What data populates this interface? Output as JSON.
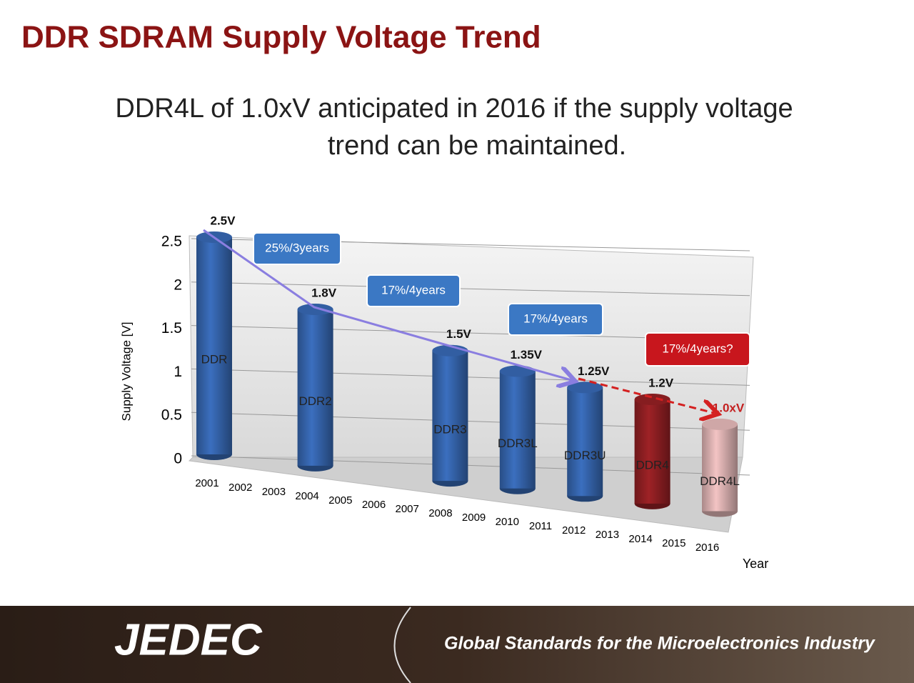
{
  "slide": {
    "title": "DDR SDRAM Supply Voltage Trend",
    "subtitle": [
      "DDR4L of 1.0xV anticipated in 2016 if the supply voltage",
      "trend can be maintained."
    ]
  },
  "chart_data": {
    "type": "bar3d",
    "y_label": "Supply Voltage  [V]",
    "x_label": "Year",
    "categories": [
      "2001",
      "2002",
      "2003",
      "2004",
      "2005",
      "2006",
      "2007",
      "2008",
      "2009",
      "2010",
      "2011",
      "2012",
      "2013",
      "2014",
      "2015",
      "2016"
    ],
    "values": [
      2.5,
      null,
      null,
      1.8,
      null,
      null,
      null,
      1.5,
      null,
      1.35,
      null,
      1.25,
      null,
      1.2,
      null,
      1.0
    ],
    "value_labels": [
      "2.5V",
      null,
      null,
      "1.8V",
      null,
      null,
      null,
      "1.5V",
      null,
      "1.35V",
      null,
      "1.25V",
      null,
      "1.2V",
      null,
      "1.0xV"
    ],
    "bar_labels": [
      "DDR",
      null,
      null,
      "DDR2",
      null,
      null,
      null,
      "DDR3",
      null,
      "DDR3L",
      null,
      "DDR3U",
      null,
      "DDR4",
      null,
      "DDR4L"
    ],
    "colors": [
      "#3b6fbf",
      null,
      null,
      "#3b6fbf",
      null,
      null,
      null,
      "#3b6fbf",
      null,
      "#3b6fbf",
      null,
      "#3b6fbf",
      null,
      "#9e2226",
      null,
      "#f3c4c4"
    ],
    "ylim": [
      0,
      2.5
    ],
    "yticks": [
      0,
      0.5,
      1,
      1.5,
      2,
      2.5
    ],
    "grid": true,
    "annotations": [
      "25%/3years",
      "17%/4years",
      "17%/4years",
      "17%/4years?"
    ]
  },
  "footer": {
    "logo": "JEDEC",
    "tagline": "Global Standards for the Microelectronics Industry"
  }
}
